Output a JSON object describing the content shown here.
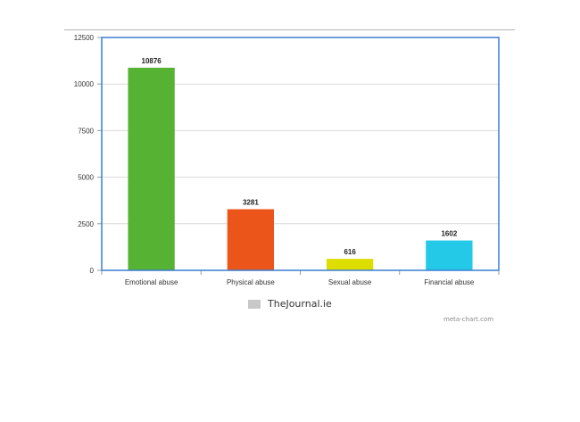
{
  "chart_data": {
    "type": "bar",
    "categories": [
      "Emotional abuse",
      "Physical abuse",
      "Sexual abuse",
      "Financial abuse"
    ],
    "values": [
      10876,
      3281,
      616,
      1602
    ],
    "data_labels": [
      "10876",
      "3281",
      "616",
      "1602"
    ],
    "bar_colors": [
      "#55b233",
      "#ec5519",
      "#dedd00",
      "#23c9e6"
    ],
    "ylim": [
      0,
      12500
    ],
    "yticks": [
      0,
      2500,
      5000,
      7500,
      10000,
      12500
    ],
    "ytick_labels": [
      "0",
      "2500",
      "5000",
      "7500",
      "10000",
      "12500"
    ],
    "grid": true,
    "legend": {
      "position": "bottom-center",
      "entries": [
        {
          "name": "TheJournal.ie",
          "color": "#c8c8c8"
        }
      ]
    },
    "title": "",
    "xlabel": "",
    "ylabel": ""
  },
  "footer": {
    "credit": "meta-chart.com"
  },
  "colors": {
    "plot_border": "#3b7fd4",
    "gridline": "#d9d9d9",
    "top_rule": "#b5b5b5"
  }
}
